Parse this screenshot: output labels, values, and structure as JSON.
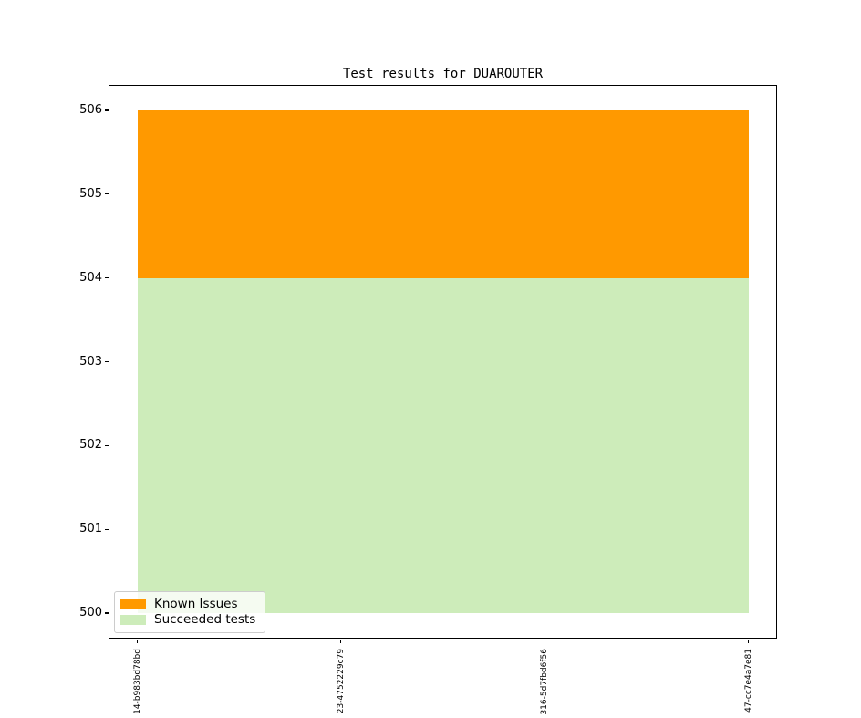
{
  "chart_data": {
    "type": "area",
    "stacked": true,
    "title": "Test results for DUAROUTER",
    "x_labels": [
      "14-b983bd78bd",
      "23-4752229c79",
      "316-5d7fbd6f56",
      "47-cc7e4a7e81"
    ],
    "y_ticks": [
      500,
      501,
      502,
      503,
      504,
      505,
      506
    ],
    "ylim": [
      500,
      506
    ],
    "grid": false,
    "series": [
      {
        "name": "Succeeded tests",
        "color": "#cdecba",
        "values": [
          504,
          504,
          504,
          504
        ]
      },
      {
        "name": "Known Issues",
        "color": "#ff9900",
        "values": [
          2,
          2,
          2,
          2
        ]
      }
    ],
    "legend": {
      "position": "lower left",
      "items": [
        {
          "label": "Known Issues",
          "color": "#ff9900"
        },
        {
          "label": "Succeeded tests",
          "color": "#cdecba"
        }
      ]
    }
  }
}
